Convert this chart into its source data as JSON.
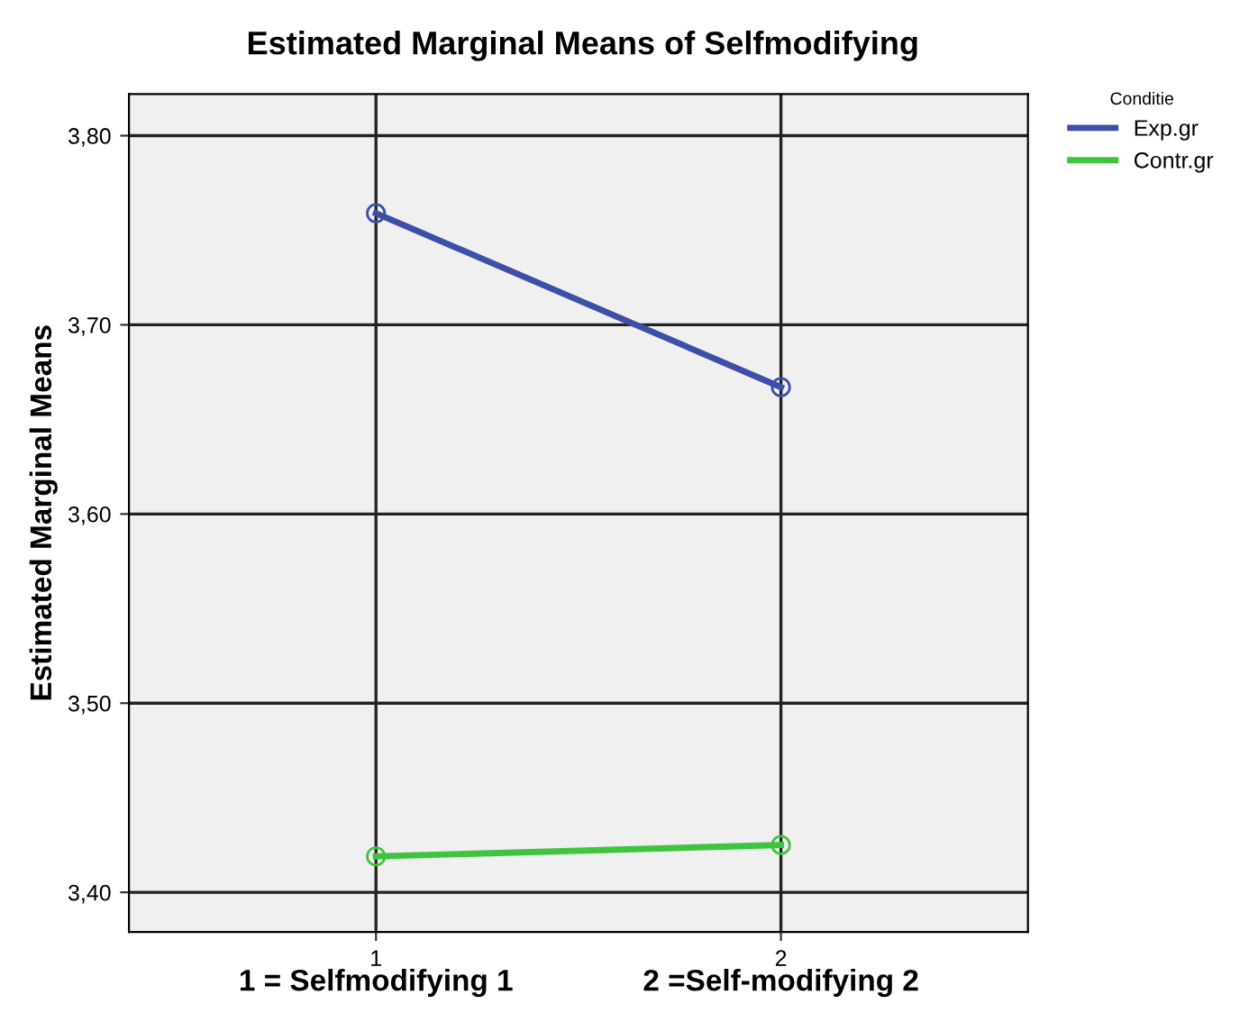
{
  "chart_data": {
    "type": "line",
    "title": "Estimated Marginal Means of Selfmodifying",
    "ylabel": "Estimated Marginal Means",
    "legend_title": "Conditie",
    "x": [
      1,
      2
    ],
    "series": [
      {
        "name": "Exp.gr",
        "color": "#3e4fa8",
        "values": [
          3.759,
          3.667
        ]
      },
      {
        "name": "Contr.gr",
        "color": "#3ec43e",
        "values": [
          3.419,
          3.425
        ]
      }
    ],
    "xlim": [
      0.39,
      2.61
    ],
    "xticks": [
      1,
      2
    ],
    "ylim": [
      3.379,
      3.822
    ],
    "yticks": [
      {
        "value": 3.4,
        "label": "3,40"
      },
      {
        "value": 3.5,
        "label": "3,50"
      },
      {
        "value": 3.6,
        "label": "3,60"
      },
      {
        "value": 3.7,
        "label": "3,70"
      },
      {
        "value": 3.8,
        "label": "3,80"
      }
    ],
    "annotations": [
      "1 = Selfmodifying 1",
      "2 =Self-modifying 2"
    ],
    "grid": true,
    "legend": "top right",
    "marker": "circle",
    "line_style": "solid"
  }
}
